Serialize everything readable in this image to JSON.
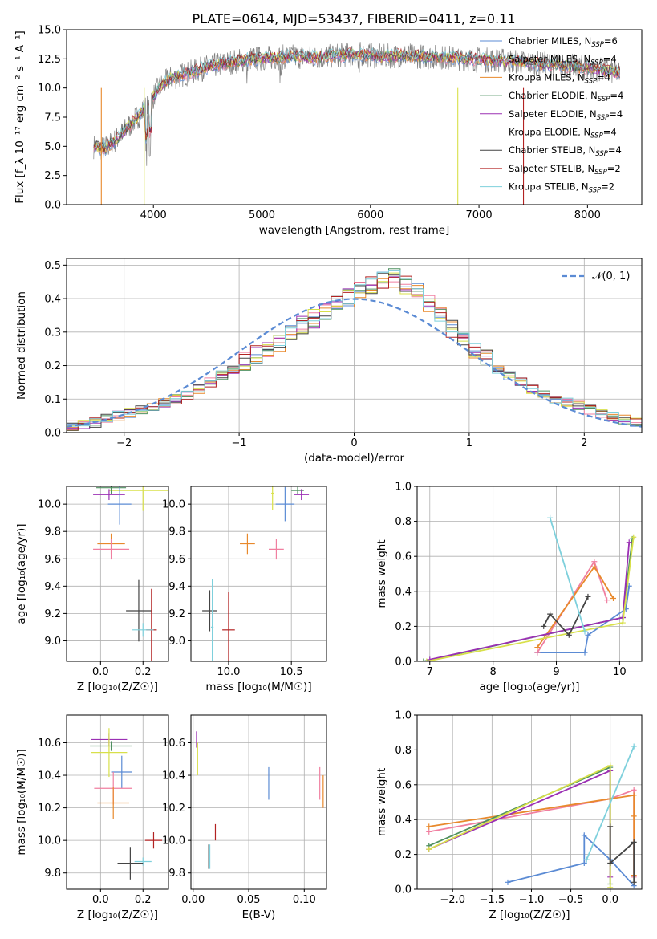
{
  "figure": {
    "title": "PLATE=0614, MJD=53437, FIBERID=0411, z=0.11"
  },
  "chart_data": [
    {
      "panel": "spectrum",
      "type": "line",
      "xlabel": "wavelength [Angstrom, rest frame]",
      "ylabel": "Flux [f_λ 10⁻¹⁷ erg cm⁻² s⁻¹ A⁻¹]",
      "xlim": [
        3200,
        8500
      ],
      "ylim": [
        0,
        15
      ],
      "xticks": [
        4000,
        5000,
        6000,
        7000,
        8000
      ],
      "yticks": [
        0.0,
        2.5,
        5.0,
        7.5,
        10.0,
        12.5,
        15.0
      ],
      "grid": false,
      "legend_position": "right",
      "continuum": {
        "x": [
          3450,
          3550,
          3650,
          3750,
          3850,
          3950,
          4050,
          4150,
          4300,
          4500,
          4700,
          4900,
          5100,
          5300,
          5500,
          5700,
          5900,
          6100,
          6300,
          6500,
          6700,
          6900,
          7100,
          7300,
          7500,
          7700,
          7900,
          8100,
          8300
        ],
        "y": [
          5.0,
          4.8,
          5.5,
          6.5,
          7.5,
          8.5,
          10.0,
          10.8,
          11.2,
          11.8,
          12.2,
          12.5,
          12.6,
          12.7,
          12.6,
          12.8,
          12.9,
          12.7,
          12.8,
          12.7,
          12.6,
          12.5,
          12.4,
          12.3,
          12.1,
          12.0,
          11.8,
          11.6,
          11.3
        ]
      },
      "series": [
        {
          "name": "Chabrier MILES, N_SSP=6",
          "color": "#5b8bd4"
        },
        {
          "name": "Salpeter MILES, N_SSP=4",
          "color": "#f07fa0"
        },
        {
          "name": "Kroupa MILES, N_SSP=4",
          "color": "#e8892c"
        },
        {
          "name": "Chabrier ELODIE, N_SSP=4",
          "color": "#4f9060"
        },
        {
          "name": "Salpeter ELODIE, N_SSP=4",
          "color": "#9b30b4"
        },
        {
          "name": "Kroupa ELODIE, N_SSP=4",
          "color": "#d8e04a"
        },
        {
          "name": "Chabrier STELIB, N_SSP=4",
          "color": "#444444"
        },
        {
          "name": "Salpeter STELIB, N_SSP=2",
          "color": "#b22222"
        },
        {
          "name": "Kroupa STELIB, N_SSP=2",
          "color": "#7ed0dc"
        }
      ]
    },
    {
      "panel": "residuals",
      "type": "line",
      "xlabel": "(data-model)/error",
      "ylabel": "Normed distribution",
      "xlim": [
        -2.5,
        2.5
      ],
      "ylim": [
        0,
        0.52
      ],
      "xticks": [
        -2,
        -1,
        0,
        1,
        2
      ],
      "yticks": [
        0.0,
        0.1,
        0.2,
        0.3,
        0.4,
        0.5
      ],
      "grid": true,
      "legend": "𝒩(0, 1)",
      "bin_width": 0.1,
      "bin_start": -2.5,
      "histogram": [
        0.02,
        0.025,
        0.03,
        0.04,
        0.05,
        0.06,
        0.07,
        0.08,
        0.09,
        0.1,
        0.11,
        0.13,
        0.15,
        0.17,
        0.19,
        0.21,
        0.23,
        0.25,
        0.27,
        0.3,
        0.32,
        0.34,
        0.36,
        0.38,
        0.4,
        0.42,
        0.44,
        0.45,
        0.46,
        0.44,
        0.42,
        0.38,
        0.35,
        0.31,
        0.28,
        0.25,
        0.22,
        0.19,
        0.17,
        0.15,
        0.13,
        0.11,
        0.1,
        0.09,
        0.08,
        0.07,
        0.06,
        0.05,
        0.04,
        0.03
      ]
    },
    {
      "panel": "age_vs_Z",
      "type": "scatter",
      "xlabel": "Z [log₁₀(Z/Z☉)]",
      "ylabel": "age  [log₁₀(age/yr)]",
      "xlim": [
        -0.16,
        0.32
      ],
      "ylim": [
        8.85,
        10.13
      ],
      "xticks": [
        0.0,
        0.2
      ],
      "yticks": [
        9.0,
        9.2,
        9.4,
        9.6,
        9.8,
        10.0
      ],
      "grid": true,
      "points": [
        {
          "x": 0.2,
          "y": 10.1,
          "xerr": 0.32,
          "yerr": 0.3,
          "color": "#d8e04a"
        },
        {
          "x": 0.05,
          "y": 10.12,
          "xerr": 0.14,
          "yerr": 0.1,
          "color": "#4f9060"
        },
        {
          "x": 0.04,
          "y": 10.07,
          "xerr": 0.15,
          "yerr": 0.08,
          "color": "#9b30b4"
        },
        {
          "x": 0.09,
          "y": 10.0,
          "xerr": 0.11,
          "yerr": 0.3,
          "color": "#5b8bd4"
        },
        {
          "x": 0.05,
          "y": 9.71,
          "xerr": 0.13,
          "yerr": 0.15,
          "color": "#e8892c"
        },
        {
          "x": 0.05,
          "y": 9.67,
          "xerr": 0.17,
          "yerr": 0.15,
          "color": "#f07fa0"
        },
        {
          "x": 0.18,
          "y": 9.22,
          "xerr": 0.12,
          "yerr": 0.45,
          "color": "#444444"
        },
        {
          "x": 0.24,
          "y": 9.08,
          "xerr": 0.05,
          "yerr": 0.6,
          "color": "#b22222"
        },
        {
          "x": 0.2,
          "y": 9.08,
          "xerr": 0.1,
          "yerr": 0.1,
          "color": "#7ed0dc"
        }
      ]
    },
    {
      "panel": "age_vs_mass",
      "type": "scatter",
      "xlabel": "mass [log₁₀(M/M☉)]",
      "ylabel": "",
      "xlim": [
        9.7,
        10.78
      ],
      "ylim": [
        8.85,
        10.13
      ],
      "xticks": [
        10.0,
        10.5
      ],
      "yticks": [
        9.0,
        9.2,
        9.4,
        9.6,
        9.8,
        10.0
      ],
      "grid": true,
      "points": [
        {
          "x": 10.55,
          "y": 10.1,
          "xerr": 0.1,
          "yerr": 0.05,
          "color": "#4f9060"
        },
        {
          "x": 10.58,
          "y": 10.07,
          "xerr": 0.12,
          "yerr": 0.08,
          "color": "#9b30b4"
        },
        {
          "x": 10.45,
          "y": 10.0,
          "xerr": 0.15,
          "yerr": 0.25,
          "color": "#5b8bd4"
        },
        {
          "x": 10.35,
          "y": 10.08,
          "xerr": 0.02,
          "yerr": 0.25,
          "color": "#d8e04a"
        },
        {
          "x": 10.15,
          "y": 9.71,
          "xerr": 0.12,
          "yerr": 0.15,
          "color": "#e8892c"
        },
        {
          "x": 10.38,
          "y": 9.67,
          "xerr": 0.12,
          "yerr": 0.15,
          "color": "#f07fa0"
        },
        {
          "x": 9.85,
          "y": 9.22,
          "xerr": 0.12,
          "yerr": 0.3,
          "color": "#444444"
        },
        {
          "x": 10.0,
          "y": 9.08,
          "xerr": 0.1,
          "yerr": 0.55,
          "color": "#b22222"
        },
        {
          "x": 9.87,
          "y": 9.1,
          "xerr": 0.02,
          "yerr": 0.7,
          "color": "#7ed0dc"
        }
      ]
    },
    {
      "panel": "massweight_vs_age",
      "type": "line",
      "xlabel": "age  [log₁₀(age/yr)]",
      "ylabel": "mass weight",
      "xlim": [
        6.8,
        10.35
      ],
      "ylim": [
        0,
        1.0
      ],
      "xticks": [
        7,
        8,
        9,
        10
      ],
      "yticks": [
        0.0,
        0.2,
        0.4,
        0.6,
        0.8,
        1.0
      ],
      "grid": true,
      "series": [
        {
          "color": "#5b8bd4",
          "x": [
            8.7,
            9.45,
            9.5,
            10.1,
            10.15
          ],
          "y": [
            0.05,
            0.05,
            0.15,
            0.3,
            0.43
          ]
        },
        {
          "color": "#f07fa0",
          "x": [
            8.7,
            9.6,
            9.8
          ],
          "y": [
            0.05,
            0.57,
            0.35
          ]
        },
        {
          "color": "#e8892c",
          "x": [
            8.7,
            9.6,
            9.9
          ],
          "y": [
            0.08,
            0.54,
            0.36
          ]
        },
        {
          "color": "#4f9060",
          "x": [
            6.9,
            10.05,
            10.2
          ],
          "y": [
            0.0,
            0.25,
            0.7
          ]
        },
        {
          "color": "#9b30b4",
          "x": [
            7.0,
            10.05,
            10.15
          ],
          "y": [
            0.01,
            0.25,
            0.68
          ]
        },
        {
          "color": "#d8e04a",
          "x": [
            6.95,
            10.05,
            10.22
          ],
          "y": [
            0.0,
            0.22,
            0.71
          ]
        },
        {
          "color": "#444444",
          "x": [
            8.8,
            8.9,
            9.2,
            9.5
          ],
          "y": [
            0.2,
            0.27,
            0.15,
            0.37
          ]
        },
        {
          "color": "#7ed0dc",
          "x": [
            8.9,
            9.45
          ],
          "y": [
            0.82,
            0.17
          ]
        }
      ]
    },
    {
      "panel": "mass_vs_Z",
      "type": "scatter",
      "xlabel": "Z [log₁₀(Z/Z☉)]",
      "ylabel": "mass [log₁₀(M/M☉)]",
      "xlim": [
        -0.16,
        0.32
      ],
      "ylim": [
        9.7,
        10.77
      ],
      "xticks": [
        0.0,
        0.2
      ],
      "yticks": [
        9.8,
        10.0,
        10.2,
        10.4,
        10.6
      ],
      "grid": true,
      "points": [
        {
          "x": 0.04,
          "y": 10.62,
          "xerr": 0.17,
          "yerr": 0.08,
          "color": "#9b30b4"
        },
        {
          "x": 0.05,
          "y": 10.58,
          "xerr": 0.2,
          "yerr": 0.06,
          "color": "#4f9060"
        },
        {
          "x": 0.04,
          "y": 10.54,
          "xerr": 0.17,
          "yerr": 0.3,
          "color": "#d8e04a"
        },
        {
          "x": 0.1,
          "y": 10.42,
          "xerr": 0.1,
          "yerr": 0.2,
          "color": "#5b8bd4"
        },
        {
          "x": 0.06,
          "y": 10.32,
          "xerr": 0.18,
          "yerr": 0.2,
          "color": "#f07fa0"
        },
        {
          "x": 0.06,
          "y": 10.23,
          "xerr": 0.15,
          "yerr": 0.2,
          "color": "#e8892c"
        },
        {
          "x": 0.25,
          "y": 10.0,
          "xerr": 0.08,
          "yerr": 0.1,
          "color": "#b22222"
        },
        {
          "x": 0.2,
          "y": 9.87,
          "xerr": 0.08,
          "yerr": 0.05,
          "color": "#7ed0dc"
        },
        {
          "x": 0.14,
          "y": 9.86,
          "xerr": 0.12,
          "yerr": 0.2,
          "color": "#444444"
        }
      ]
    },
    {
      "panel": "mass_vs_EBV",
      "type": "scatter",
      "xlabel": "E(B-V)",
      "ylabel": "",
      "xlim": [
        -0.002,
        0.12
      ],
      "ylim": [
        9.7,
        10.77
      ],
      "xticks": [
        0.0,
        0.05,
        0.1
      ],
      "yticks": [
        9.8,
        10.0,
        10.2,
        10.4,
        10.6
      ],
      "grid": true,
      "points": [
        {
          "x": 0.003,
          "y": 10.62,
          "xerr": 0.0,
          "yerr": 0.1,
          "color": "#9b30b4"
        },
        {
          "x": 0.004,
          "y": 10.5,
          "xerr": 0.0,
          "yerr": 0.2,
          "color": "#d8e04a"
        },
        {
          "x": 0.068,
          "y": 10.35,
          "xerr": 0.0,
          "yerr": 0.2,
          "color": "#5b8bd4"
        },
        {
          "x": 0.117,
          "y": 10.3,
          "xerr": 0.0,
          "yerr": 0.2,
          "color": "#e8892c"
        },
        {
          "x": 0.114,
          "y": 10.35,
          "xerr": 0.0,
          "yerr": 0.2,
          "color": "#f07fa0"
        },
        {
          "x": 0.02,
          "y": 10.05,
          "xerr": 0.0,
          "yerr": 0.1,
          "color": "#b22222"
        },
        {
          "x": 0.015,
          "y": 9.9,
          "xerr": 0.0,
          "yerr": 0.15,
          "color": "#7ed0dc"
        },
        {
          "x": 0.014,
          "y": 9.9,
          "xerr": 0.0,
          "yerr": 0.15,
          "color": "#444444"
        }
      ]
    },
    {
      "panel": "massweight_vs_Z",
      "type": "line",
      "xlabel": "Z [log₁₀(Z/Z☉)]",
      "ylabel": "mass weight",
      "xlim": [
        -2.45,
        0.4
      ],
      "ylim": [
        0,
        1.0
      ],
      "xticks": [
        -2.0,
        -1.5,
        -1.0,
        -0.5,
        0.0
      ],
      "yticks": [
        0.0,
        0.2,
        0.4,
        0.6,
        0.8,
        1.0
      ],
      "grid": true,
      "series": [
        {
          "color": "#5b8bd4",
          "x": [
            -1.3,
            -0.33,
            -0.33,
            0.0,
            0.3
          ],
          "y": [
            0.04,
            0.15,
            0.31,
            0.17,
            0.02
          ]
        },
        {
          "color": "#f07fa0",
          "x": [
            -2.3,
            0.0,
            0.3,
            0.3
          ],
          "y": [
            0.33,
            0.52,
            0.57,
            0.07
          ]
        },
        {
          "color": "#e8892c",
          "x": [
            -2.3,
            0.3,
            0.3,
            0.3
          ],
          "y": [
            0.36,
            0.54,
            0.08,
            0.42
          ]
        },
        {
          "color": "#4f9060",
          "x": [
            -2.3,
            0.0,
            0.0
          ],
          "y": [
            0.25,
            0.7,
            0.03
          ]
        },
        {
          "color": "#9b30b4",
          "x": [
            -2.3,
            0.0,
            0.0
          ],
          "y": [
            0.23,
            0.68,
            0.07
          ]
        },
        {
          "color": "#d8e04a",
          "x": [
            -2.3,
            0.0,
            0.0
          ],
          "y": [
            0.23,
            0.71,
            0.01
          ]
        },
        {
          "color": "#444444",
          "x": [
            0.0,
            0.0,
            0.3,
            0.3
          ],
          "y": [
            0.36,
            0.15,
            0.27,
            0.04
          ]
        },
        {
          "color": "#7ed0dc",
          "x": [
            -0.3,
            0.3
          ],
          "y": [
            0.17,
            0.82
          ]
        }
      ]
    }
  ]
}
